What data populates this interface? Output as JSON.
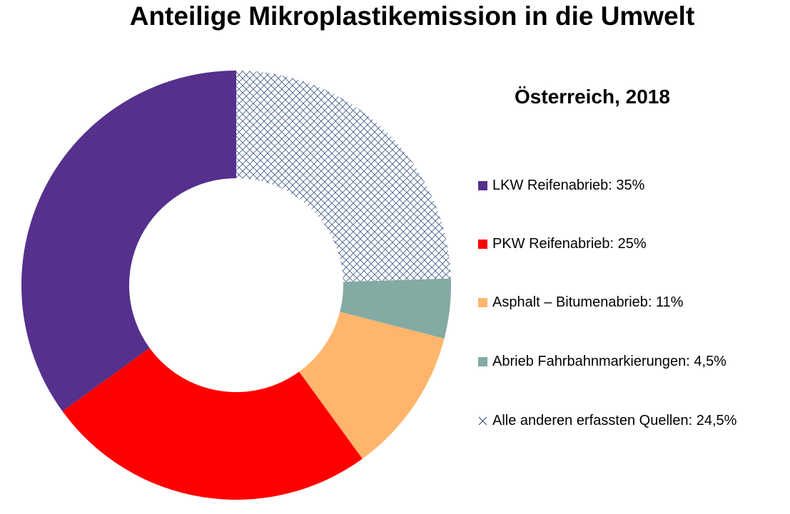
{
  "chart_data": {
    "type": "pie",
    "variant": "donut",
    "title": "Anteilige Mikroplastikemission in die Umwelt",
    "legend_title": "Österreich, 2018",
    "legend_position": "right",
    "slices": [
      {
        "label": "LKW Reifenabrieb: 35%",
        "value": 35,
        "color": "#55308d",
        "pattern": "solid"
      },
      {
        "label": "PKW Reifenabrieb: 25%",
        "value": 25,
        "color": "#ff0000",
        "pattern": "solid"
      },
      {
        "label": "Asphalt – Bitumenabrieb: 11%",
        "value": 11,
        "color": "#ffb66c",
        "pattern": "solid"
      },
      {
        "label": "Abrieb Fahrbahnmarkierungen: 4,5%",
        "value": 4.5,
        "color": "#83aaa3",
        "pattern": "solid"
      },
      {
        "label": "Alle anderen erfassten Quellen: 24,5%",
        "value": 24.5,
        "color": "#1c3a73",
        "pattern": "crosshatch"
      }
    ],
    "drawing_order": "counterclockwise from top, starting with LKW Reifenabrieb"
  }
}
